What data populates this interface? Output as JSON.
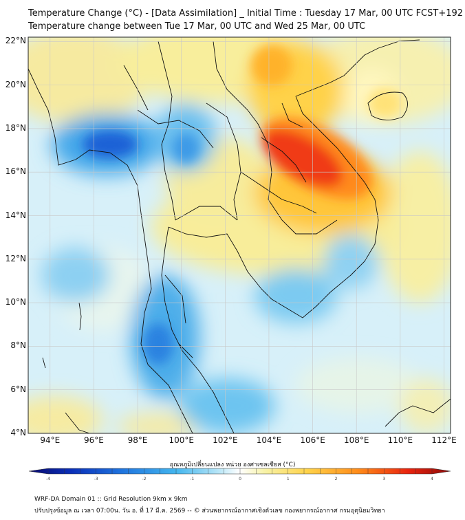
{
  "header": {
    "title_line1": "Temperature Change (°C) - [Data Assimilation] _ Initial Time : Tuesday 17 Mar, 00 UTC FCST+192",
    "title_line2": "Temperature change between Tue 17 Mar, 00 UTC and Wed 25 Mar, 00 UTC"
  },
  "map": {
    "lat_labels": [
      "22°N",
      "20°N",
      "18°N",
      "16°N",
      "14°N",
      "12°N",
      "10°N",
      "8°N",
      "6°N",
      "4°N"
    ],
    "lon_labels": [
      "94°E",
      "96°E",
      "98°E",
      "100°E",
      "102°E",
      "104°E",
      "106°E",
      "108°E",
      "110°E",
      "112°E"
    ],
    "lat_values": [
      22,
      20,
      18,
      16,
      14,
      12,
      10,
      8,
      6,
      4
    ],
    "lon_values": [
      94,
      96,
      98,
      100,
      102,
      104,
      106,
      108,
      110,
      112
    ],
    "lon_range": [
      93,
      112.3
    ],
    "lat_range": [
      4,
      22.2
    ],
    "grid": true
  },
  "colorbar": {
    "title": "อุณหภูมิเปลี่ยนแปลง หน่วย องศาเซลเซียส (°C)",
    "ticks": [
      "-4",
      "-3",
      "-2",
      "-1",
      "0",
      "1",
      "2",
      "3",
      "4"
    ],
    "range": [
      -4,
      4
    ],
    "colors": [
      "#08086e",
      "#0a2fb8",
      "#1f74de",
      "#44b6ee",
      "#b8e6f7",
      "#ffffff",
      "#f7f2a6",
      "#ffd34a",
      "#ff8c1a",
      "#e8230e",
      "#8e0a08"
    ]
  },
  "footer": {
    "line1": "WRF-DA Domain 01 :: Grid Resolution 9km x 9km",
    "line2": "ปรับปรุงข้อมูล ณ เวลา 07:00น. วัน อ. ที่ 17 มี.ค. 2569 -- © ส่วนพยากรณ์อากาศเชิงตัวเลข กองพยากรณ์อากาศ กรมอุตุนิยมวิทยา"
  }
}
